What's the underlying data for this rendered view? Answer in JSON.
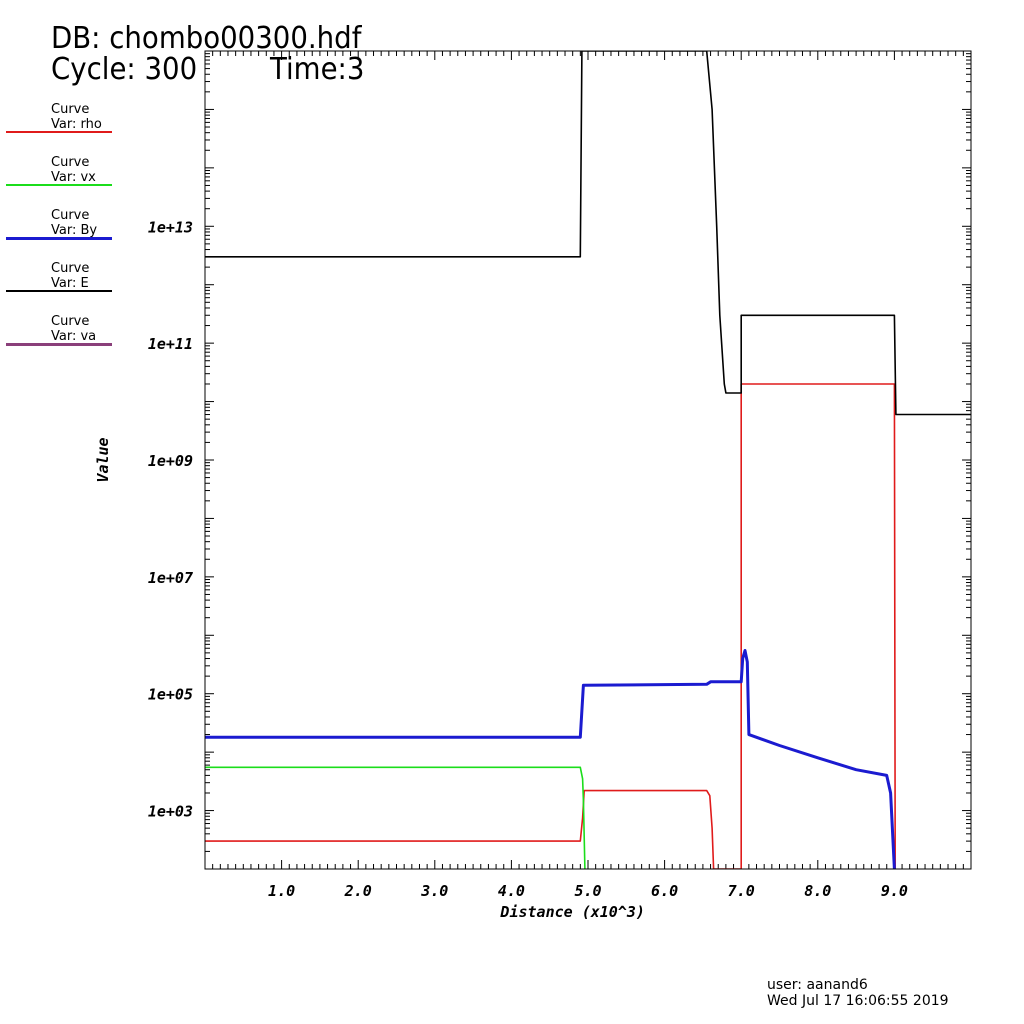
{
  "header": {
    "db": "DB: chombo00300.hdf",
    "cycle": "Cycle: 300",
    "time": "Time:3"
  },
  "legend": [
    {
      "title": "Curve",
      "var": "Var: rho",
      "color": "#e01b1b"
    },
    {
      "title": "Curve",
      "var": "Var: vx",
      "color": "#1bdd1b"
    },
    {
      "title": "Curve",
      "var": "Var: By",
      "color": "#1b1bd0"
    },
    {
      "title": "Curve",
      "var": "Var: E",
      "color": "#000000"
    },
    {
      "title": "Curve",
      "var": "Var: va",
      "color": "#8a3f7a"
    }
  ],
  "footer": {
    "user": "user: aanand6",
    "date": "Wed Jul 17 16:06:55 2019"
  },
  "chart_data": {
    "type": "line",
    "xlabel": "Distance (x10^3)",
    "ylabel": "Value",
    "xlim": [
      0,
      10
    ],
    "ylim": [
      100,
      10000000000000000
    ],
    "yscale": "log",
    "x_ticks": [
      1.0,
      2.0,
      3.0,
      4.0,
      5.0,
      6.0,
      7.0,
      8.0,
      9.0
    ],
    "x_tick_labels": [
      "1.0",
      "2.0",
      "3.0",
      "4.0",
      "5.0",
      "6.0",
      "7.0",
      "8.0",
      "9.0"
    ],
    "y_ticks": [
      1000,
      100000,
      10000000,
      1000000000,
      100000000000,
      10000000000000
    ],
    "y_tick_labels": [
      "1e+03",
      "1e+05",
      "1e+07",
      "1e+09",
      "1e+11",
      "1e+13"
    ],
    "series": [
      {
        "name": "rho",
        "color": "#e01b1b",
        "points": [
          [
            0,
            300
          ],
          [
            4.9,
            300
          ],
          [
            4.93,
            750
          ],
          [
            4.95,
            2200
          ],
          [
            6.55,
            2200
          ],
          [
            6.59,
            1800
          ],
          [
            6.62,
            500
          ],
          [
            6.64,
            100
          ],
          [
            7.0,
            100
          ],
          [
            7.0,
            20000000000
          ],
          [
            9.0,
            20000000000
          ],
          [
            9.01,
            100
          ]
        ]
      },
      {
        "name": "vx",
        "color": "#1bdd1b",
        "points": [
          [
            0,
            5500
          ],
          [
            4.9,
            5500
          ],
          [
            4.93,
            3500
          ],
          [
            4.94,
            1500
          ],
          [
            4.96,
            100
          ]
        ]
      },
      {
        "name": "By",
        "color": "#1b1bd0",
        "points": [
          [
            0,
            18000
          ],
          [
            4.9,
            18000
          ],
          [
            4.94,
            140000
          ],
          [
            6.55,
            145000
          ],
          [
            6.6,
            160000
          ],
          [
            7.0,
            160000
          ],
          [
            7.02,
            400000
          ],
          [
            7.05,
            550000
          ],
          [
            7.08,
            350000
          ],
          [
            7.1,
            20000
          ],
          [
            7.5,
            13000
          ],
          [
            8.0,
            8000
          ],
          [
            8.5,
            5000
          ],
          [
            8.9,
            4000
          ],
          [
            8.95,
            2000
          ],
          [
            9.0,
            100
          ]
        ]
      },
      {
        "name": "E",
        "color": "#000000",
        "points": [
          [
            0,
            3000000000000
          ],
          [
            4.9,
            3000000000000
          ],
          [
            4.92,
            10000000000000000
          ],
          [
            6.55,
            10000000000000000
          ],
          [
            6.62,
            1000000000000000
          ],
          [
            6.68,
            10000000000000
          ],
          [
            6.72,
            300000000000
          ],
          [
            6.78,
            20000000000
          ],
          [
            6.8,
            14000000000
          ],
          [
            7.0,
            14000000000
          ],
          [
            7.0,
            300000000000
          ],
          [
            9.0,
            300000000000
          ],
          [
            9.02,
            6000000000
          ],
          [
            10.0,
            6000000000
          ]
        ]
      },
      {
        "name": "va",
        "color": "#8a3f7a",
        "points": []
      }
    ]
  }
}
